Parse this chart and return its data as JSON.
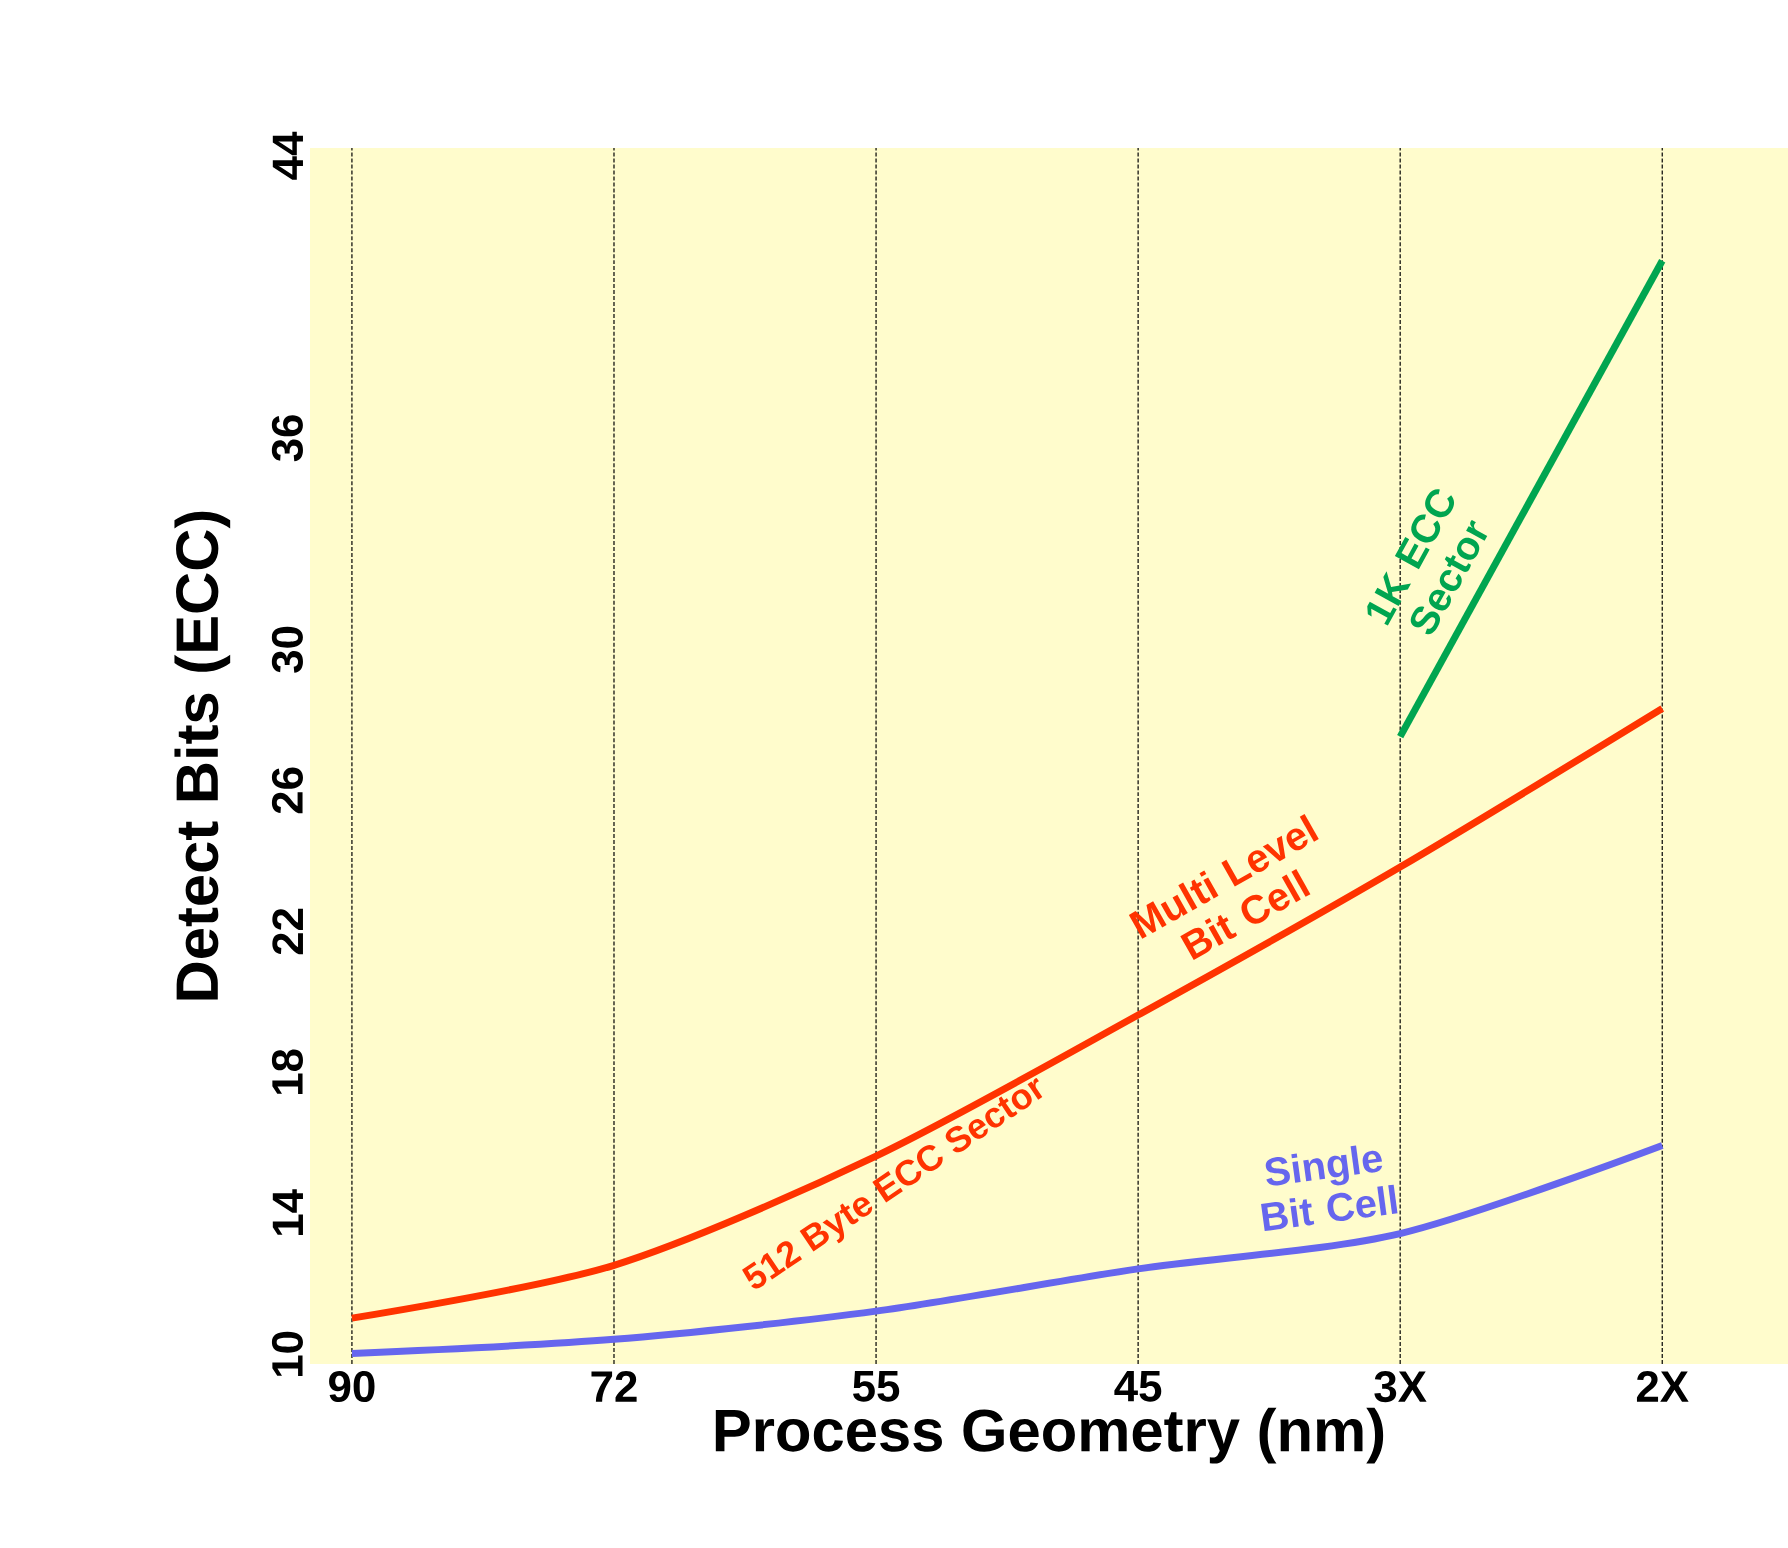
{
  "chart_data": {
    "type": "line",
    "xlabel": "Process Geometry (nm)",
    "ylabel": "Detect Bits (ECC)",
    "categories": [
      "90",
      "72",
      "55",
      "45",
      "3X",
      "2X"
    ],
    "ylim": [
      9.5,
      44
    ],
    "yticks": [
      10,
      14,
      18,
      22,
      26,
      30,
      36,
      44
    ],
    "grid": "x",
    "marker": "none",
    "line_style": "solid",
    "series": [
      {
        "name": "Multi Level Bit Cell",
        "color": "#ff3300",
        "values": [
          10.8,
          12.3,
          15.4,
          19.4,
          23.6,
          28.1
        ]
      },
      {
        "name": "Single Bit Cell",
        "color": "#6666ee",
        "values": [
          9.8,
          10.2,
          11.0,
          12.2,
          13.2,
          15.7
        ]
      },
      {
        "name": "1K ECC Sector",
        "color": "#00a550",
        "values": [
          null,
          null,
          null,
          null,
          27.3,
          40.8
        ]
      }
    ],
    "annotations": [
      {
        "text": "512 Byte ECC Sector",
        "x": "55",
        "y": 15.4
      }
    ]
  }
}
